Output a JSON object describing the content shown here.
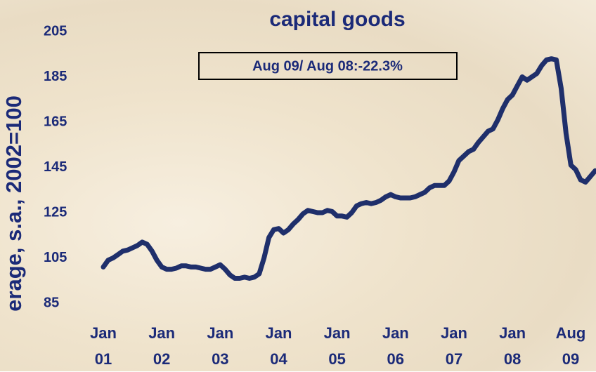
{
  "chart_data": {
    "type": "line",
    "title": "capital goods",
    "annotation": "Aug 09/ Aug 08:-22.3%",
    "y_label": "erage, s.a., 2002=100",
    "color": "#1f2f6b",
    "ylim": [
      85,
      205
    ],
    "yticks": [
      85,
      105,
      125,
      145,
      165,
      185,
      205
    ],
    "xticks": [
      {
        "value": "2001-01",
        "label": "Jan 01"
      },
      {
        "value": "2002-01",
        "label": "Jan 02"
      },
      {
        "value": "2003-01",
        "label": "Jan 03"
      },
      {
        "value": "2004-01",
        "label": "Jan 04"
      },
      {
        "value": "2005-01",
        "label": "Jan 05"
      },
      {
        "value": "2006-01",
        "label": "Jan 06"
      },
      {
        "value": "2007-01",
        "label": "Jan 07"
      },
      {
        "value": "2008-01",
        "label": "Jan 08"
      },
      {
        "value": "2009-08",
        "label": "Aug 09"
      }
    ],
    "x": [
      "2001-01",
      "2001-02",
      "2001-03",
      "2001-04",
      "2001-05",
      "2001-06",
      "2001-07",
      "2001-08",
      "2001-09",
      "2001-10",
      "2001-11",
      "2001-12",
      "2002-01",
      "2002-02",
      "2002-03",
      "2002-04",
      "2002-05",
      "2002-06",
      "2002-07",
      "2002-08",
      "2002-09",
      "2002-10",
      "2002-11",
      "2002-12",
      "2003-01",
      "2003-02",
      "2003-03",
      "2003-04",
      "2003-05",
      "2003-06",
      "2003-07",
      "2003-08",
      "2003-09",
      "2003-10",
      "2003-11",
      "2003-12",
      "2004-01",
      "2004-02",
      "2004-03",
      "2004-04",
      "2004-05",
      "2004-06",
      "2004-07",
      "2004-08",
      "2004-09",
      "2004-10",
      "2004-11",
      "2004-12",
      "2005-01",
      "2005-02",
      "2005-03",
      "2005-04",
      "2005-05",
      "2005-06",
      "2005-07",
      "2005-08",
      "2005-09",
      "2005-10",
      "2005-11",
      "2005-12",
      "2006-01",
      "2006-02",
      "2006-03",
      "2006-04",
      "2006-05",
      "2006-06",
      "2006-07",
      "2006-08",
      "2006-09",
      "2006-10",
      "2006-11",
      "2006-12",
      "2007-01",
      "2007-02",
      "2007-03",
      "2007-04",
      "2007-05",
      "2007-06",
      "2007-07",
      "2007-08",
      "2007-09",
      "2007-10",
      "2007-11",
      "2007-12",
      "2008-01",
      "2008-02",
      "2008-03",
      "2008-04",
      "2008-05",
      "2008-06",
      "2008-07",
      "2008-08",
      "2008-09",
      "2008-10",
      "2008-11",
      "2008-12",
      "2009-01",
      "2009-02",
      "2009-03",
      "2009-04",
      "2009-05",
      "2009-06"
    ],
    "values": [
      101,
      104,
      105,
      106.5,
      108,
      108.5,
      109.5,
      110.5,
      112,
      111,
      108,
      104,
      101,
      100,
      100,
      100.5,
      101.5,
      101.5,
      101,
      101,
      100.5,
      100,
      100,
      101,
      102,
      100,
      97.5,
      96,
      96,
      96.5,
      96,
      96.5,
      98,
      105,
      114,
      117.5,
      118,
      116,
      117.5,
      120,
      122,
      124.5,
      126,
      125.5,
      125,
      125,
      126,
      125.5,
      123.5,
      123.5,
      123,
      125,
      128,
      129,
      129.5,
      129,
      129.5,
      130.5,
      132,
      133,
      132,
      131.5,
      131.5,
      131.5,
      132,
      133,
      134,
      136,
      137,
      137,
      137,
      139,
      143,
      148,
      150,
      152,
      153,
      156,
      158.5,
      161,
      162,
      166,
      171,
      175,
      177,
      181,
      185,
      183.5,
      185,
      186.5,
      190,
      192.5,
      193,
      192.5,
      180,
      160,
      146,
      144,
      139.5,
      138.5,
      141,
      143.5
    ]
  }
}
